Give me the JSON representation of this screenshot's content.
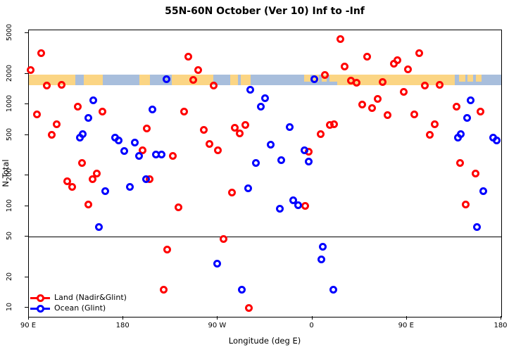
{
  "title": "55N-60N October (Ver 10)   Inf to -Inf",
  "chart_data": {
    "type": "scatter",
    "title": "55N-60N October (Ver 10)   Inf to -Inf",
    "xlabel": "Longitude (deg E)",
    "ylabel": "N Total",
    "x_axis": {
      "min": 90,
      "max": 540,
      "ticks": [
        90,
        180,
        270,
        360,
        450,
        540
      ],
      "tick_labels": [
        "90 E",
        "180",
        "90 W",
        "0",
        "90 E",
        "180"
      ],
      "note": "longitude axis wraps past 180; degrees >180 shown as deg-360 W/E"
    },
    "y_axis": {
      "scale": "log",
      "min": 8,
      "max": 5300,
      "ticks": [
        10,
        20,
        50,
        100,
        200,
        500,
        1000,
        2000,
        5000
      ],
      "tick_labels": [
        "10",
        "20",
        "50",
        "100",
        "200",
        "500",
        "1000",
        "2000",
        "5000"
      ]
    },
    "reference_line_y": 50,
    "grid": false,
    "legend_position": "bottom-left",
    "map_band": {
      "value_top": 1950,
      "value_bottom": 1540,
      "ocean_color": "#A8BEDC",
      "land_color": "#FBD584",
      "land_segments_deg": [
        [
          90,
          134.5
        ],
        [
          142,
          160.5
        ],
        [
          195.5,
          205.5
        ],
        [
          226,
          266
        ],
        [
          281.5,
          289.5
        ],
        [
          292,
          301.5
        ],
        [
          352.5,
          358
        ],
        [
          361,
          366
        ],
        [
          369,
          373.5
        ],
        [
          376.5,
          383.5
        ],
        [
          383.5,
          495.5
        ],
        [
          500,
          505.5
        ],
        [
          508,
          513
        ],
        [
          516,
          521
        ]
      ]
    },
    "series": [
      {
        "name": "Land (Nadir&Glint)",
        "color": "#FF0000",
        "points": [
          [
            101.5,
            3200
          ],
          [
            91.9,
            2170
          ],
          [
            107,
            1520
          ],
          [
            121.4,
            1550
          ],
          [
            136.6,
            950
          ],
          [
            97.5,
            800
          ],
          [
            160,
            840
          ],
          [
            116.5,
            640
          ],
          [
            111.6,
            500
          ],
          [
            202.5,
            580
          ],
          [
            198.5,
            350
          ],
          [
            140.6,
            264
          ],
          [
            155,
            207
          ],
          [
            227,
            312
          ],
          [
            241.7,
            2940
          ],
          [
            251.3,
            2170
          ],
          [
            246.8,
            1740
          ],
          [
            266.2,
            1520
          ],
          [
            237.7,
            840
          ],
          [
            296,
            630
          ],
          [
            286.4,
            590
          ],
          [
            290.9,
            520
          ],
          [
            256.7,
            560
          ],
          [
            261.8,
            410
          ],
          [
            270.3,
            350
          ],
          [
            386.6,
            4400
          ],
          [
            412.3,
            2940
          ],
          [
            391,
            2330
          ],
          [
            372,
            1950
          ],
          [
            397,
            1700
          ],
          [
            402.2,
            1620
          ],
          [
            426.8,
            1650
          ],
          [
            437.9,
            2520
          ],
          [
            441.1,
            2730
          ],
          [
            451.2,
            2220
          ],
          [
            422.3,
            1120
          ],
          [
            407.8,
            1000
          ],
          [
            417.1,
            920
          ],
          [
            431.7,
            780
          ],
          [
            380.7,
            640
          ],
          [
            376.5,
            630
          ],
          [
            368,
            510
          ],
          [
            356.4,
            340
          ],
          [
            461.9,
            3200
          ],
          [
            467.1,
            1520
          ],
          [
            481.5,
            1550
          ],
          [
            497.2,
            950
          ],
          [
            457.4,
            800
          ],
          [
            520.5,
            840
          ],
          [
            476.4,
            640
          ],
          [
            471.9,
            500
          ],
          [
            501,
            264
          ],
          [
            515.6,
            207
          ],
          [
            447,
            1320
          ],
          [
            353.4,
            100
          ],
          [
            126.8,
            175
          ],
          [
            131.2,
            155
          ],
          [
            150.5,
            182
          ],
          [
            204.8,
            182
          ],
          [
            232.3,
            97
          ],
          [
            283.5,
            135
          ],
          [
            275.6,
            47
          ],
          [
            221.6,
            37
          ],
          [
            218.6,
            15
          ],
          [
            299.8,
            10
          ],
          [
            146.7,
            104
          ],
          [
            506.1,
            104
          ]
        ]
      },
      {
        "name": "Ocean (Glint)",
        "color": "#0000FF",
        "points": [
          [
            151.2,
            1090
          ],
          [
            146.7,
            730
          ],
          [
            207.5,
            890
          ],
          [
            138.4,
            470
          ],
          [
            141.5,
            510
          ],
          [
            172.4,
            473
          ],
          [
            175.7,
            440
          ],
          [
            190.9,
            420
          ],
          [
            180.7,
            345
          ],
          [
            195.2,
            310
          ],
          [
            220.9,
            1770
          ],
          [
            301,
            1380
          ],
          [
            315,
            1140
          ],
          [
            311,
            950
          ],
          [
            320.4,
            400
          ],
          [
            211.1,
            318
          ],
          [
            216.4,
            318
          ],
          [
            306.1,
            264
          ],
          [
            330.6,
            280
          ],
          [
            361.7,
            1770
          ],
          [
            338.5,
            600
          ],
          [
            352.8,
            353
          ],
          [
            356.4,
            273
          ],
          [
            341.8,
            114
          ],
          [
            346.7,
            102
          ],
          [
            328.9,
            94
          ],
          [
            162.6,
            140
          ],
          [
            186.2,
            153
          ],
          [
            201.5,
            182
          ],
          [
            298.7,
            150
          ],
          [
            156.7,
            62
          ],
          [
            269.6,
            27
          ],
          [
            293.1,
            15
          ],
          [
            370.2,
            40
          ],
          [
            368.6,
            30
          ],
          [
            380.3,
            15
          ],
          [
            511,
            1090
          ],
          [
            507.3,
            730
          ],
          [
            498.8,
            470
          ],
          [
            501.7,
            510
          ],
          [
            532.4,
            473
          ],
          [
            535.7,
            440
          ],
          [
            522.9,
            140
          ],
          [
            516.9,
            62
          ]
        ]
      }
    ]
  }
}
